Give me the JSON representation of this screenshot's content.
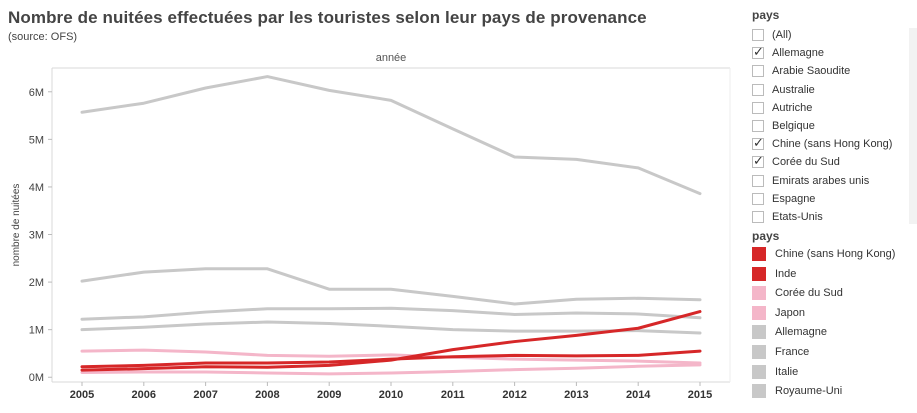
{
  "title": "Nombre de nuitées effectuées par les touristes selon leur pays de provenance",
  "subtitle": "(source: OFS)",
  "filter": {
    "title": "pays",
    "items": [
      {
        "label": "(All)",
        "checked": false
      },
      {
        "label": "Allemagne",
        "checked": true
      },
      {
        "label": "Arabie Saoudite",
        "checked": false
      },
      {
        "label": "Australie",
        "checked": false
      },
      {
        "label": "Autriche",
        "checked": false
      },
      {
        "label": "Belgique",
        "checked": false
      },
      {
        "label": "Chine (sans Hong Kong)",
        "checked": true
      },
      {
        "label": "Corée du Sud",
        "checked": true
      },
      {
        "label": "Emirats arabes unis",
        "checked": false
      },
      {
        "label": "Espagne",
        "checked": false
      },
      {
        "label": "Etats-Unis",
        "checked": false
      }
    ]
  },
  "legend": {
    "title": "pays",
    "items": [
      {
        "label": "Chine (sans Hong Kong)",
        "color": "#d62728"
      },
      {
        "label": "Inde",
        "color": "#d62728"
      },
      {
        "label": "Corée du Sud",
        "color": "#f4b6c9"
      },
      {
        "label": "Japon",
        "color": "#f4b6c9"
      },
      {
        "label": "Allemagne",
        "color": "#c8c8c8"
      },
      {
        "label": "France",
        "color": "#c8c8c8"
      },
      {
        "label": "Italie",
        "color": "#c8c8c8"
      },
      {
        "label": "Royaume-Uni",
        "color": "#c8c8c8"
      }
    ]
  },
  "chart_data": {
    "type": "line",
    "title": "Nombre de nuitées effectuées par les touristes selon leur pays de provenance",
    "top_label": "année",
    "xlabel": "",
    "ylabel": "nombre de nuitées",
    "x": [
      2005,
      2006,
      2007,
      2008,
      2009,
      2010,
      2011,
      2012,
      2013,
      2014,
      2015
    ],
    "ylim": [
      -100000,
      6500000
    ],
    "yticks": [
      0,
      1000000,
      2000000,
      3000000,
      4000000,
      5000000,
      6000000
    ],
    "ytick_labels": [
      "0M",
      "1M",
      "2M",
      "3M",
      "4M",
      "5M",
      "6M"
    ],
    "grid": false,
    "legend": "right",
    "series": [
      {
        "name": "Allemagne",
        "color": "#c8c8c8",
        "values": [
          5570000,
          5760000,
          6080000,
          6320000,
          6030000,
          5820000,
          5220000,
          4630000,
          4580000,
          4400000,
          3860000
        ]
      },
      {
        "name": "Royaume-Uni",
        "color": "#c8c8c8",
        "values": [
          2020000,
          2210000,
          2280000,
          2280000,
          1850000,
          1850000,
          1700000,
          1540000,
          1640000,
          1660000,
          1630000
        ]
      },
      {
        "name": "France",
        "color": "#c8c8c8",
        "values": [
          1220000,
          1270000,
          1370000,
          1440000,
          1440000,
          1450000,
          1400000,
          1320000,
          1350000,
          1330000,
          1250000
        ]
      },
      {
        "name": "Italie",
        "color": "#c8c8c8",
        "values": [
          1000000,
          1050000,
          1120000,
          1160000,
          1130000,
          1070000,
          1000000,
          970000,
          970000,
          980000,
          930000
        ]
      },
      {
        "name": "Japon",
        "color": "#f4b6c9",
        "values": [
          550000,
          570000,
          530000,
          460000,
          440000,
          470000,
          420000,
          380000,
          360000,
          340000,
          300000
        ]
      },
      {
        "name": "Corée du Sud",
        "color": "#f4b6c9",
        "values": [
          100000,
          110000,
          110000,
          90000,
          70000,
          90000,
          120000,
          160000,
          190000,
          230000,
          260000
        ]
      },
      {
        "name": "Inde",
        "color": "#d62728",
        "values": [
          220000,
          250000,
          300000,
          300000,
          320000,
          380000,
          430000,
          460000,
          450000,
          460000,
          550000
        ]
      },
      {
        "name": "Chine (sans Hong Kong)",
        "color": "#d62728",
        "values": [
          150000,
          180000,
          220000,
          210000,
          250000,
          360000,
          580000,
          750000,
          880000,
          1030000,
          1380000
        ]
      }
    ]
  }
}
